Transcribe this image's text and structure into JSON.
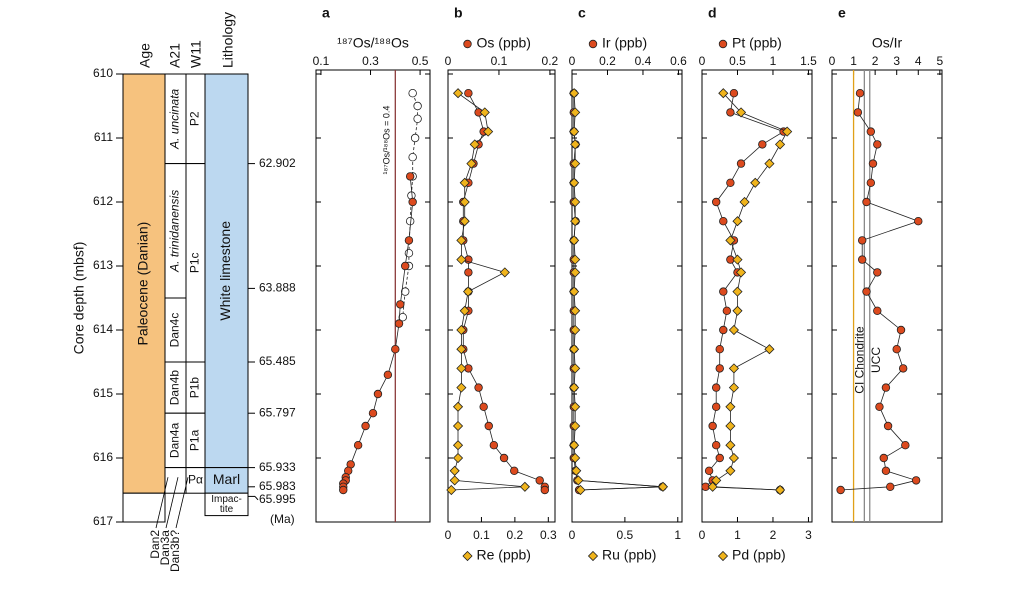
{
  "column": {
    "ylabel": "Core depth (mbsf)",
    "ylim": [
      610,
      617
    ],
    "yticks": [
      610,
      611,
      612,
      613,
      614,
      615,
      616,
      617
    ],
    "headers": [
      "Age",
      "A21",
      "W11",
      "Lithology"
    ],
    "age": [
      {
        "label": "Paleocene (Danian)",
        "top": 610,
        "base": 616.55,
        "color": "#f6c27e"
      },
      {
        "top": 616.55,
        "base": 617,
        "color": "#ffffff"
      }
    ],
    "a21": [
      {
        "label": "A. uncinata",
        "italic": true,
        "top": 610,
        "base": 611.4
      },
      {
        "label": "A. trinidanensis",
        "italic": true,
        "top": 611.4,
        "base": 613.5
      },
      {
        "label": "Dan4c",
        "top": 613.5,
        "base": 614.5
      },
      {
        "label": "Dan4b",
        "top": 614.5,
        "base": 615.3
      },
      {
        "label": "Dan4a",
        "top": 615.3,
        "base": 616.15
      },
      {
        "top": 616.15,
        "base": 616.55
      }
    ],
    "w11": [
      {
        "label": "P2",
        "top": 610,
        "base": 611.4
      },
      {
        "label": "P1c",
        "top": 611.4,
        "base": 614.5
      },
      {
        "label": "P1b",
        "top": 614.5,
        "base": 615.3
      },
      {
        "label": "P1a",
        "top": 615.3,
        "base": 616.15
      },
      {
        "label": "Pα",
        "top": 616.15,
        "base": 616.55
      }
    ],
    "lithology": [
      {
        "label": "White limestone",
        "top": 610,
        "base": 616.15,
        "color": "#bcd8f0"
      },
      {
        "label": "Marl",
        "top": 616.15,
        "base": 616.55,
        "color": "#bcd8f0"
      },
      {
        "label": [
          "Impac-",
          "tite"
        ],
        "top": 616.55,
        "base": 616.9,
        "color": "#ffffff"
      }
    ],
    "ages": [
      {
        "age": 62.902,
        "depth": 611.4
      },
      {
        "age": 63.888,
        "depth": 613.35
      },
      {
        "age": 65.485,
        "depth": 614.5
      },
      {
        "age": 65.797,
        "depth": 615.3
      },
      {
        "age": 65.933,
        "depth": 616.15
      },
      {
        "age": 65.983,
        "depth": 616.45
      },
      {
        "age": 65.995,
        "depth": 616.6
      }
    ],
    "age_unit": "(Ma)",
    "minor_zones": [
      "Dan2",
      "Dan3a",
      "Dan3b?"
    ]
  },
  "chart_data": [
    {
      "type": "depth-profile",
      "title": "a",
      "xlabel": "¹⁸⁷Os/¹⁸⁸Os",
      "xlim": [
        0.08,
        0.54
      ],
      "xticks": [
        0.1,
        0.3,
        0.5
      ],
      "reflines": [
        {
          "value": 0.4,
          "label": "¹⁸⁷Os/¹⁸⁸Os = 0.4",
          "color": "#8b3a3a"
        }
      ],
      "series": [
        {
          "color": "#ffffff",
          "open": true,
          "marker": "circle",
          "depth": [
            610.3,
            610.5,
            610.7,
            611.0,
            611.3,
            611.6,
            611.9,
            612.3,
            612.8,
            613.0,
            613.4,
            613.8
          ],
          "values": [
            0.47,
            0.49,
            0.49,
            0.48,
            0.47,
            0.47,
            0.465,
            0.46,
            0.455,
            0.455,
            0.44,
            0.43
          ]
        },
        {
          "color": "#dc4a1e",
          "marker": "circle",
          "depth": [
            611.6,
            612.0,
            612.6,
            613.0,
            613.6,
            613.9,
            614.3,
            614.7,
            615.0,
            615.3,
            615.5,
            615.8,
            616.1,
            616.2,
            616.3,
            616.35,
            616.4,
            616.45,
            616.5
          ],
          "values": [
            0.46,
            0.47,
            0.455,
            0.44,
            0.42,
            0.415,
            0.4,
            0.37,
            0.33,
            0.31,
            0.28,
            0.25,
            0.22,
            0.21,
            0.2,
            0.2,
            0.19,
            0.19,
            0.19
          ]
        }
      ]
    },
    {
      "type": "depth-profile",
      "title": "b",
      "xlim": [
        0,
        0.21
      ],
      "xticks": [
        0,
        0.1,
        0.2
      ],
      "x2lim": [
        0,
        0.32
      ],
      "x2ticks": [
        0,
        0.1,
        0.2,
        0.3
      ],
      "series": [
        {
          "name": "Os (ppb)",
          "color": "#dc4a1e",
          "marker": "circle",
          "depth": [
            610.3,
            610.6,
            610.9,
            611.1,
            611.4,
            611.7,
            612.0,
            612.3,
            612.6,
            612.9,
            613.1,
            613.4,
            613.7,
            614.0,
            614.3,
            614.6,
            614.9,
            615.2,
            615.5,
            615.8,
            616.0,
            616.2,
            616.35,
            616.45,
            616.5
          ],
          "values": [
            0.04,
            0.06,
            0.07,
            0.06,
            0.05,
            0.04,
            0.03,
            0.03,
            0.03,
            0.04,
            0.04,
            0.04,
            0.04,
            0.03,
            0.03,
            0.04,
            0.06,
            0.07,
            0.08,
            0.09,
            0.11,
            0.13,
            0.18,
            0.19,
            0.19
          ]
        },
        {
          "name": "Re (ppb)",
          "axis": "x2",
          "color": "#f0b41c",
          "marker": "diamond",
          "depth": [
            610.3,
            610.6,
            610.9,
            611.1,
            611.4,
            611.7,
            612.0,
            612.3,
            612.6,
            612.9,
            613.1,
            613.4,
            613.7,
            614.0,
            614.3,
            614.6,
            614.9,
            615.2,
            615.5,
            615.8,
            616.0,
            616.2,
            616.35,
            616.45,
            616.5
          ],
          "values": [
            0.03,
            0.11,
            0.12,
            0.08,
            0.07,
            0.05,
            0.05,
            0.05,
            0.04,
            0.04,
            0.17,
            0.06,
            0.05,
            0.04,
            0.04,
            0.04,
            0.04,
            0.03,
            0.03,
            0.03,
            0.03,
            0.02,
            0.02,
            0.23,
            0.01
          ]
        }
      ]
    },
    {
      "type": "depth-profile",
      "title": "c",
      "xlim": [
        0,
        0.62
      ],
      "xticks": [
        0,
        0.2,
        0.4,
        0.6
      ],
      "x2lim": [
        0,
        1.04
      ],
      "x2ticks": [
        0,
        0.5,
        1
      ],
      "series": [
        {
          "name": "Ir (ppb)",
          "color": "#dc4a1e",
          "marker": "circle",
          "depth": [
            610.3,
            610.6,
            610.9,
            611.1,
            611.4,
            611.7,
            612.0,
            612.3,
            612.6,
            612.9,
            613.1,
            613.4,
            613.7,
            614.0,
            614.3,
            614.6,
            614.9,
            615.2,
            615.5,
            615.8,
            616.0,
            616.2,
            616.35,
            616.45,
            616.5
          ],
          "values": [
            0.01,
            0.01,
            0.01,
            0.02,
            0.01,
            0.01,
            0.01,
            0.02,
            0.01,
            0.01,
            0.01,
            0.01,
            0.01,
            0.01,
            0.01,
            0.01,
            0.01,
            0.01,
            0.01,
            0.01,
            0.01,
            0.02,
            0.03,
            0.51,
            0.04
          ]
        },
        {
          "name": "Ru (ppb)",
          "axis": "x2",
          "color": "#f0b41c",
          "marker": "diamond",
          "depth": [
            610.3,
            610.6,
            610.9,
            611.1,
            611.4,
            611.7,
            612.0,
            612.3,
            612.6,
            612.9,
            613.1,
            613.4,
            613.7,
            614.0,
            614.3,
            614.6,
            614.9,
            615.2,
            615.5,
            615.8,
            616.0,
            616.2,
            616.35,
            616.45,
            616.5
          ],
          "values": [
            0.02,
            0.03,
            0.02,
            0.03,
            0.03,
            0.02,
            0.03,
            0.03,
            0.02,
            0.03,
            0.03,
            0.02,
            0.03,
            0.03,
            0.02,
            0.03,
            0.02,
            0.03,
            0.03,
            0.02,
            0.03,
            0.04,
            0.06,
            0.86,
            0.08
          ]
        }
      ]
    },
    {
      "type": "depth-profile",
      "title": "d",
      "xlim": [
        0,
        1.55
      ],
      "xticks": [
        0,
        0.5,
        1,
        1.5
      ],
      "x2lim": [
        0,
        3.1
      ],
      "x2ticks": [
        0,
        1,
        2,
        3
      ],
      "series": [
        {
          "name": "Pt (ppb)",
          "color": "#dc4a1e",
          "marker": "circle",
          "depth": [
            610.3,
            610.6,
            610.9,
            611.1,
            611.4,
            611.7,
            612.0,
            612.3,
            612.6,
            612.9,
            613.1,
            613.4,
            613.7,
            614.0,
            614.3,
            614.6,
            614.9,
            615.2,
            615.5,
            615.8,
            616.0,
            616.2,
            616.35,
            616.45,
            616.5
          ],
          "values": [
            0.45,
            0.4,
            1.15,
            0.85,
            0.55,
            0.4,
            0.2,
            0.3,
            0.45,
            0.4,
            0.5,
            0.3,
            0.35,
            0.3,
            0.25,
            0.25,
            0.2,
            0.2,
            0.15,
            0.2,
            0.25,
            0.1,
            0.15,
            0.05,
            1.1
          ]
        },
        {
          "name": "Pd (ppb)",
          "axis": "x2",
          "color": "#f0b41c",
          "marker": "diamond",
          "depth": [
            610.3,
            610.6,
            610.9,
            611.1,
            611.4,
            611.7,
            612.0,
            612.3,
            612.6,
            612.9,
            613.1,
            613.4,
            613.7,
            614.0,
            614.3,
            614.6,
            614.9,
            615.2,
            615.5,
            615.8,
            616.0,
            616.2,
            616.35,
            616.45,
            616.5
          ],
          "values": [
            0.6,
            1.1,
            2.4,
            2.2,
            1.9,
            1.5,
            1.2,
            1.0,
            0.8,
            1.0,
            1.1,
            1.0,
            1.0,
            0.9,
            1.9,
            0.9,
            0.9,
            0.8,
            0.8,
            0.8,
            0.9,
            0.8,
            0.4,
            0.3,
            2.2
          ]
        }
      ]
    },
    {
      "type": "depth-profile",
      "title": "e",
      "xlabel": "Os/Ir",
      "xlim": [
        0,
        5.1
      ],
      "xticks": [
        0,
        1,
        2,
        3,
        4,
        5
      ],
      "reflines": [
        {
          "value": 1,
          "label": "CI Chondrite",
          "color": "#e0a018"
        },
        {
          "values": [
            1.5,
            1.75
          ],
          "label": "UCC",
          "color": "#8a8a8a"
        }
      ],
      "series": [
        {
          "color": "#dc4a1e",
          "marker": "circle",
          "depth": [
            610.3,
            610.6,
            610.9,
            611.1,
            611.4,
            611.7,
            612.0,
            612.3,
            612.6,
            612.9,
            613.1,
            613.4,
            613.7,
            614.0,
            614.3,
            614.6,
            614.9,
            615.2,
            615.5,
            615.8,
            616.0,
            616.2,
            616.35,
            616.45,
            616.5
          ],
          "values": [
            1.3,
            1.2,
            1.8,
            2.1,
            1.9,
            1.8,
            1.6,
            4.0,
            1.4,
            1.4,
            2.1,
            1.6,
            2.1,
            3.2,
            3.0,
            3.3,
            2.5,
            2.2,
            2.6,
            3.4,
            2.4,
            2.5,
            3.9,
            2.7,
            0.4
          ]
        }
      ]
    }
  ]
}
